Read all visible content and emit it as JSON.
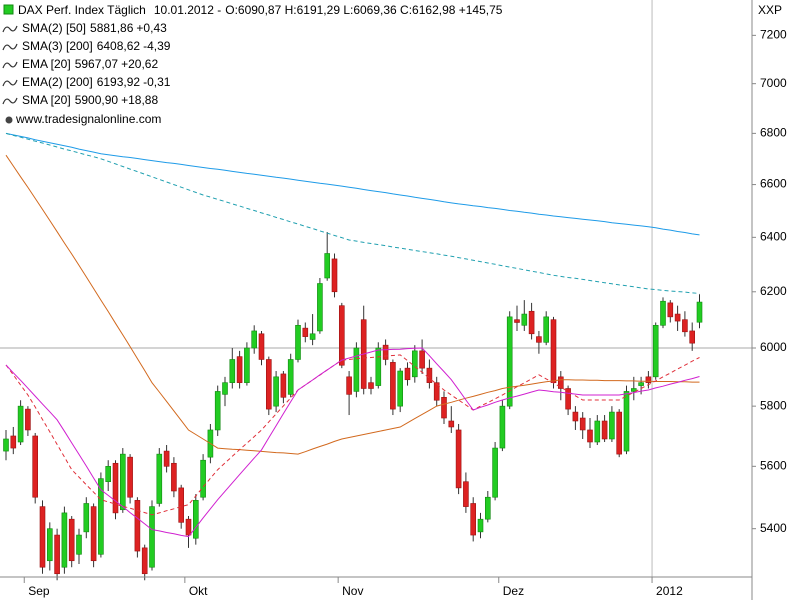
{
  "chart_data": {
    "type": "candlestick",
    "title": "DAX Perf. Index Täglich",
    "date": "10.01.2012 -",
    "quote": "O:6090,87 H:6191,29 L:6069,36 C:6162,98 +145,75",
    "quote_color": "#009900",
    "source": "www.tradesignalonline.com",
    "unit": "XXP",
    "log_scale": true,
    "ylim": [
      5250,
      7350
    ],
    "yticks": [
      5400,
      5600,
      5800,
      6000,
      6200,
      6400,
      6600,
      6800,
      7000,
      7200
    ],
    "hline": 6000,
    "year_separator": true,
    "up_color": "#22cc22",
    "down_color": "#dd2222",
    "categories": [
      null,
      null,
      null,
      "Sep",
      null,
      null,
      null,
      null,
      null,
      null,
      null,
      null,
      null,
      null,
      null,
      null,
      null,
      null,
      null,
      null,
      null,
      null,
      null,
      null,
      null,
      "Okt",
      null,
      null,
      null,
      null,
      null,
      null,
      null,
      null,
      null,
      null,
      null,
      null,
      null,
      null,
      null,
      null,
      null,
      null,
      null,
      null,
      "Nov",
      null,
      null,
      null,
      null,
      null,
      null,
      null,
      null,
      null,
      null,
      null,
      null,
      null,
      null,
      null,
      null,
      null,
      null,
      null,
      null,
      null,
      "Dez",
      null,
      null,
      null,
      null,
      null,
      null,
      null,
      null,
      null,
      null,
      null,
      null,
      null,
      null,
      null,
      null,
      null,
      null,
      null,
      null,
      "2012",
      null,
      null,
      null,
      null,
      null,
      null
    ],
    "open": [
      5650,
      5700,
      5680,
      5790,
      5700,
      5470,
      5300,
      5380,
      5280,
      5430,
      5320,
      5390,
      5470,
      5320,
      5550,
      5610,
      5460,
      5630,
      5490,
      5340,
      5280,
      5480,
      5650,
      5610,
      5530,
      5430,
      5370,
      5500,
      5630,
      5720,
      5840,
      5880,
      5970,
      5880,
      6000,
      6050,
      5960,
      5800,
      5910,
      5840,
      5960,
      6070,
      6030,
      6060,
      6250,
      6320,
      6150,
      5900,
      5850,
      6100,
      5880,
      5870,
      6010,
      5950,
      5800,
      5930,
      5900,
      5990,
      5930,
      5880,
      5830,
      5750,
      5720,
      5550,
      5480,
      5390,
      5430,
      5500,
      5660,
      5800,
      6100,
      6080,
      6130,
      6040,
      6020,
      6100,
      5900,
      5860,
      5780,
      5760,
      5720,
      5680,
      5750,
      5690,
      5780,
      5650,
      5850,
      5870,
      5900,
      5900,
      6080,
      6160,
      6120,
      6100,
      6060,
      6090.87
    ],
    "high": [
      5720,
      5730,
      5820,
      5800,
      5710,
      5490,
      5420,
      5400,
      5470,
      5440,
      5400,
      5500,
      5480,
      5580,
      5620,
      5620,
      5660,
      5640,
      5500,
      5350,
      5490,
      5660,
      5670,
      5630,
      5540,
      5440,
      5510,
      5640,
      5740,
      5870,
      5900,
      6000,
      5990,
      6020,
      6080,
      6060,
      5970,
      5920,
      5920,
      5980,
      6100,
      6090,
      6120,
      6250,
      6420,
      6340,
      6160,
      5920,
      6020,
      6150,
      5900,
      6020,
      6030,
      5960,
      5930,
      5950,
      6010,
      6030,
      5960,
      5900,
      5850,
      5800,
      5740,
      5580,
      5500,
      5450,
      5520,
      5680,
      5820,
      6130,
      6150,
      6170,
      6160,
      6060,
      6130,
      6110,
      5920,
      5870,
      5800,
      5780,
      5760,
      5770,
      5770,
      5800,
      5790,
      5870,
      5900,
      5900,
      5920,
      6090,
      6180,
      6170,
      6150,
      6130,
      6090,
      6191.29
    ],
    "low": [
      5620,
      5640,
      5670,
      5700,
      5480,
      5260,
      5270,
      5240,
      5260,
      5280,
      5290,
      5370,
      5280,
      5310,
      5520,
      5430,
      5450,
      5480,
      5310,
      5240,
      5270,
      5470,
      5580,
      5500,
      5400,
      5340,
      5350,
      5490,
      5610,
      5700,
      5800,
      5860,
      5860,
      5870,
      5980,
      5940,
      5770,
      5780,
      5810,
      5830,
      5950,
      6020,
      6010,
      6050,
      6240,
      6180,
      5930,
      5770,
      5830,
      5840,
      5840,
      5860,
      5940,
      5770,
      5780,
      5870,
      5880,
      5910,
      5860,
      5800,
      5740,
      5710,
      5510,
      5450,
      5360,
      5370,
      5420,
      5490,
      5650,
      5790,
      6060,
      6060,
      6030,
      5980,
      6010,
      5860,
      5820,
      5770,
      5720,
      5690,
      5660,
      5670,
      5680,
      5680,
      5630,
      5640,
      5820,
      5840,
      5860,
      5890,
      6070,
      6090,
      6060,
      6040,
      5990,
      6069.36
    ],
    "close": [
      5690,
      5660,
      5800,
      5720,
      5500,
      5280,
      5400,
      5260,
      5450,
      5300,
      5380,
      5480,
      5300,
      5560,
      5600,
      5450,
      5640,
      5500,
      5330,
      5260,
      5470,
      5640,
      5600,
      5520,
      5420,
      5380,
      5490,
      5620,
      5720,
      5850,
      5880,
      5960,
      5880,
      6000,
      6060,
      5960,
      5790,
      5900,
      5830,
      5960,
      6080,
      6040,
      6050,
      6230,
      6340,
      6200,
      5940,
      5840,
      6000,
      5860,
      5860,
      6000,
      5960,
      5790,
      5920,
      5890,
      5990,
      5930,
      5880,
      5820,
      5760,
      5730,
      5530,
      5470,
      5380,
      5430,
      5500,
      5660,
      5800,
      6110,
      6090,
      6120,
      6050,
      6020,
      6110,
      5880,
      5860,
      5790,
      5750,
      5720,
      5680,
      5750,
      5690,
      5780,
      5640,
      5850,
      5860,
      5880,
      5880,
      6080,
      6166,
      6110,
      6095,
      6057,
      6017,
      6162.98
    ],
    "series": [
      {
        "name": "SMA(2) [50]",
        "color": "#d2691e",
        "dashed": false,
        "value_label": "5881,86",
        "change": "+0,43",
        "change_color": "#009900",
        "values": [
          6714,
          6672,
          6630,
          6589,
          6547,
          6505,
          6463,
          6421,
          6379,
          6338,
          6296,
          6254,
          6212,
          6170,
          6129,
          6087,
          6046,
          6005,
          5963,
          5922,
          5880,
          5848,
          5816,
          5784,
          5752,
          5720,
          5705,
          5690,
          5675,
          5660,
          5658,
          5656,
          5655,
          5653,
          5651,
          5649,
          5647,
          5645,
          5644,
          5642,
          5640,
          5648,
          5657,
          5665,
          5673,
          5682,
          5690,
          5695,
          5700,
          5705,
          5710,
          5715,
          5720,
          5725,
          5730,
          5744,
          5758,
          5772,
          5786,
          5800,
          5807,
          5813,
          5820,
          5827,
          5833,
          5840,
          5847,
          5853,
          5860,
          5864,
          5868,
          5871,
          5875,
          5879,
          5883,
          5886,
          5890,
          5890,
          5889,
          5889,
          5888,
          5888,
          5887,
          5887,
          5887,
          5886,
          5886,
          5885,
          5885,
          5884,
          5884,
          5884,
          5883,
          5883,
          5882,
          5882
        ]
      },
      {
        "name": "SMA(3) [200]",
        "color": "#1e9be8",
        "dashed": false,
        "value_label": "6408,62",
        "change": "-4,39",
        "change_color": "#e00000",
        "values": [
          6800,
          6794,
          6788,
          6782,
          6775,
          6769,
          6763,
          6757,
          6751,
          6745,
          6738,
          6732,
          6726,
          6720,
          6716,
          6712,
          6708,
          6705,
          6701,
          6697,
          6693,
          6689,
          6685,
          6682,
          6678,
          6674,
          6670,
          6666,
          6662,
          6659,
          6655,
          6651,
          6647,
          6643,
          6640,
          6636,
          6632,
          6628,
          6625,
          6621,
          6617,
          6613,
          6609,
          6605,
          6602,
          6598,
          6594,
          6590,
          6586,
          6581,
          6577,
          6573,
          6569,
          6564,
          6560,
          6556,
          6551,
          6547,
          6543,
          6539,
          6534,
          6530,
          6526,
          6523,
          6519,
          6516,
          6512,
          6509,
          6505,
          6501,
          6498,
          6494,
          6491,
          6487,
          6484,
          6480,
          6477,
          6474,
          6471,
          6468,
          6465,
          6462,
          6459,
          6455,
          6452,
          6449,
          6446,
          6443,
          6440,
          6436,
          6431,
          6427,
          6422,
          6418,
          6413,
          6409
        ]
      },
      {
        "name": "EMA [20]",
        "color": "#e0303a",
        "dashed": true,
        "value_label": "5967,07",
        "change": "+20,62",
        "change_color": "#009900",
        "values": [
          5941,
          5907,
          5872,
          5838,
          5797,
          5755,
          5714,
          5672,
          5631,
          5589,
          5565,
          5540,
          5516,
          5492,
          5485,
          5478,
          5471,
          5465,
          5458,
          5451,
          5444,
          5450,
          5457,
          5463,
          5470,
          5476,
          5504,
          5533,
          5561,
          5589,
          5611,
          5633,
          5655,
          5676,
          5698,
          5720,
          5747,
          5774,
          5801,
          5828,
          5855,
          5872,
          5889,
          5906,
          5924,
          5941,
          5958,
          5960,
          5963,
          5965,
          5967,
          5969,
          5972,
          5974,
          5976,
          5956,
          5936,
          5916,
          5895,
          5875,
          5855,
          5838,
          5821,
          5804,
          5787,
          5800,
          5812,
          5825,
          5838,
          5852,
          5866,
          5879,
          5893,
          5907,
          5893,
          5879,
          5864,
          5850,
          5835,
          5821,
          5821,
          5821,
          5821,
          5821,
          5821,
          5834,
          5847,
          5860,
          5873,
          5886,
          5900,
          5913,
          5927,
          5940,
          5954,
          5967
        ]
      },
      {
        "name": "EMA(2) [200]",
        "color": "#20a0b0",
        "dashed": true,
        "value_label": "6193,92",
        "change": "-0,31",
        "change_color": "#e00000",
        "values": [
          6800,
          6792,
          6785,
          6777,
          6769,
          6762,
          6754,
          6746,
          6738,
          6731,
          6723,
          6715,
          6708,
          6700,
          6690,
          6680,
          6670,
          6660,
          6650,
          6640,
          6630,
          6620,
          6610,
          6600,
          6590,
          6580,
          6570,
          6560,
          6552,
          6543,
          6535,
          6526,
          6518,
          6509,
          6501,
          6492,
          6484,
          6475,
          6467,
          6458,
          6450,
          6441,
          6433,
          6424,
          6416,
          6407,
          6399,
          6390,
          6386,
          6381,
          6377,
          6373,
          6369,
          6364,
          6360,
          6356,
          6351,
          6347,
          6343,
          6339,
          6334,
          6330,
          6325,
          6320,
          6315,
          6310,
          6305,
          6300,
          6295,
          6290,
          6285,
          6280,
          6275,
          6270,
          6265,
          6260,
          6256,
          6252,
          6249,
          6245,
          6241,
          6237,
          6233,
          6229,
          6225,
          6222,
          6218,
          6214,
          6210,
          6208,
          6205,
          6203,
          6201,
          6199,
          6196,
          6194
        ]
      },
      {
        "name": "SMA [20]",
        "color": "#d020d0",
        "dashed": false,
        "value_label": "5900,90",
        "change": "+18,88",
        "change_color": "#009900",
        "values": [
          5941,
          5914,
          5888,
          5861,
          5834,
          5807,
          5781,
          5754,
          5716,
          5677,
          5639,
          5601,
          5562,
          5524,
          5506,
          5488,
          5470,
          5451,
          5433,
          5415,
          5397,
          5393,
          5388,
          5384,
          5379,
          5375,
          5404,
          5434,
          5463,
          5492,
          5519,
          5546,
          5573,
          5600,
          5627,
          5654,
          5694,
          5734,
          5775,
          5815,
          5855,
          5872,
          5889,
          5907,
          5924,
          5941,
          5958,
          5965,
          5972,
          5979,
          5986,
          5993,
          5994,
          5995,
          5996,
          5998,
          5999,
          6000,
          5973,
          5945,
          5918,
          5890,
          5856,
          5821,
          5787,
          5796,
          5804,
          5813,
          5821,
          5828,
          5834,
          5841,
          5848,
          5855,
          5852,
          5849,
          5847,
          5844,
          5841,
          5838,
          5838,
          5838,
          5838,
          5838,
          5838,
          5842,
          5846,
          5851,
          5855,
          5862,
          5868,
          5875,
          5881,
          5888,
          5894,
          5901
        ]
      }
    ]
  }
}
